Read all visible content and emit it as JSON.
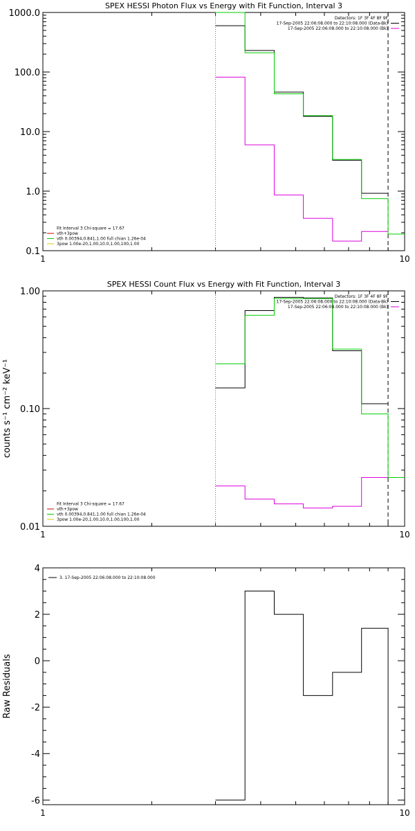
{
  "chart_data": [
    {
      "type": "line",
      "title": "SPEX HESSI Photon Flux vs Energy with Fit Function, Interval 3",
      "xlabel": "",
      "ylabel": "",
      "x_scale": "log",
      "y_scale": "log",
      "xlim": [
        1,
        10
      ],
      "ylim": [
        0.1,
        1000
      ],
      "x_ticks": [
        {
          "v": 1,
          "label": "1"
        },
        {
          "v": 10,
          "label": "10"
        }
      ],
      "y_ticks": [
        {
          "v": 0.1,
          "label": "0.1"
        },
        {
          "v": 1,
          "label": "1.0"
        },
        {
          "v": 10,
          "label": "10.0"
        },
        {
          "v": 100,
          "label": "100.0"
        },
        {
          "v": 1000,
          "label": "1000.0"
        }
      ],
      "vlines": [
        {
          "x": 3,
          "style": "dotted",
          "color": "#000000"
        },
        {
          "x": 3,
          "style": "dotted",
          "color": "#00cc00"
        },
        {
          "x": 9,
          "style": "dashed",
          "color": "#000000"
        }
      ],
      "legend_top_right": [
        "Detectors: 1F 3F 4F 8F 9F",
        "17-Sep-2005 22:06:08.000 to 22:10:08.000 (Data-Bk)",
        "17-Sep-2005 22:06:08.000 to 22:10:08.000 (Bk)"
      ],
      "legend_top_colors": [
        "#000000",
        "#000000",
        "#dd00dd"
      ],
      "legend_bottom_left": [
        "Fit Interval 3   Chi-square = 17.67",
        "vth+3pow",
        "vth 0.00394,0.841,1.00  full chian 1.26e-04",
        "3pow 1.00e-20,1.00,10.0,1.00,100,1.00"
      ],
      "legend_bottom_colors": [
        "#000000",
        "#cc0000",
        "#00cc00",
        "#cccc00"
      ],
      "series": [
        {
          "color": "#000000",
          "edges": [
            3,
            3.62,
            4.36,
            5.25,
            6.32,
            7.6,
            9.0
          ],
          "values": [
            600,
            230,
            46,
            18,
            3.3,
            0.92
          ]
        },
        {
          "color": "#00cc00",
          "edges": [
            3,
            3.62,
            4.36,
            5.25,
            6.32,
            7.6,
            9.0,
            10
          ],
          "values": [
            1000,
            210,
            43,
            18.5,
            3.4,
            0.75,
            0.19
          ]
        },
        {
          "color": "#dd00dd",
          "edges": [
            3,
            3.62,
            4.36,
            5.25,
            6.32,
            7.6,
            9.0
          ],
          "values": [
            82,
            6,
            0.86,
            0.35,
            0.145,
            0.21
          ]
        }
      ]
    },
    {
      "type": "line",
      "title": "SPEX HESSI Count Flux vs Energy with Fit Function, Interval 3",
      "xlabel": "",
      "ylabel": "counts s⁻¹ cm⁻² keV⁻¹",
      "x_scale": "log",
      "y_scale": "log",
      "xlim": [
        1,
        10
      ],
      "ylim": [
        0.01,
        1.0
      ],
      "x_ticks": [
        {
          "v": 1,
          "label": "1"
        },
        {
          "v": 10,
          "label": "10"
        }
      ],
      "y_ticks": [
        {
          "v": 0.01,
          "label": "0.01"
        },
        {
          "v": 0.1,
          "label": "0.10"
        },
        {
          "v": 1,
          "label": "1.00"
        }
      ],
      "vlines": [
        {
          "x": 3,
          "style": "dotted",
          "color": "#000000"
        },
        {
          "x": 3,
          "style": "dotted",
          "color": "#00cc00"
        },
        {
          "x": 9,
          "style": "dashed",
          "color": "#000000"
        }
      ],
      "legend_top_right": [
        "Detectors: 1F 3F 4F 8F 9F",
        "17-Sep-2005 22:06:08.000 to 22:10:08.000 (Data-Bk)",
        "17-Sep-2005 22:06:08.000 to 22:10:08.000 (Bk)"
      ],
      "legend_top_colors": [
        "#000000",
        "#000000",
        "#dd00dd"
      ],
      "legend_bottom_left": [
        "Fit Interval 3   Chi-square = 17.67",
        "vth+3pow",
        "vth 0.00394,0.841,1.00  full chian 1.26e-04",
        "3pow 1.00e-20,1.00,10.0,1.00,100,1.00"
      ],
      "legend_bottom_colors": [
        "#000000",
        "#cc0000",
        "#00cc00",
        "#cccc00"
      ],
      "series": [
        {
          "color": "#000000",
          "edges": [
            3,
            3.62,
            4.36,
            5.25,
            6.32,
            7.6,
            9.0
          ],
          "values": [
            0.15,
            0.68,
            0.88,
            0.87,
            0.31,
            0.11
          ]
        },
        {
          "color": "#00cc00",
          "edges": [
            3,
            3.62,
            4.36,
            5.25,
            6.32,
            7.6,
            9.0,
            10
          ],
          "values": [
            0.24,
            0.62,
            0.86,
            0.86,
            0.32,
            0.09,
            0.026
          ]
        },
        {
          "color": "#dd00dd",
          "edges": [
            3,
            3.62,
            4.36,
            5.25,
            6.32,
            7.6,
            9.0
          ],
          "values": [
            0.022,
            0.017,
            0.0155,
            0.0143,
            0.0148,
            0.026
          ]
        }
      ]
    },
    {
      "type": "line",
      "title": "",
      "xlabel": "",
      "ylabel": "Raw Residuals",
      "x_scale": "log",
      "y_scale": "linear",
      "xlim": [
        1,
        10
      ],
      "ylim": [
        -6.2,
        4
      ],
      "x_ticks": [
        {
          "v": 1,
          "label": "1"
        },
        {
          "v": 10,
          "label": "10"
        }
      ],
      "y_ticks": [
        {
          "v": -6,
          "label": "-6"
        },
        {
          "v": -4,
          "label": "-4"
        },
        {
          "v": -2,
          "label": "-2"
        },
        {
          "v": 0,
          "label": "0"
        },
        {
          "v": 2,
          "label": "2"
        },
        {
          "v": 4,
          "label": "4"
        }
      ],
      "vlines": [],
      "legend_top_left": [
        "3. 17-Sep-2005 22:06:08.000 to 22:10:08.000"
      ],
      "series": [
        {
          "color": "#000000",
          "edges": [
            3,
            3.62,
            4.36,
            5.25,
            6.32,
            7.6,
            9.0
          ],
          "values": [
            -6,
            3,
            2,
            -1.5,
            -0.5,
            1.4
          ],
          "drop_to_bottom": true
        }
      ]
    }
  ]
}
